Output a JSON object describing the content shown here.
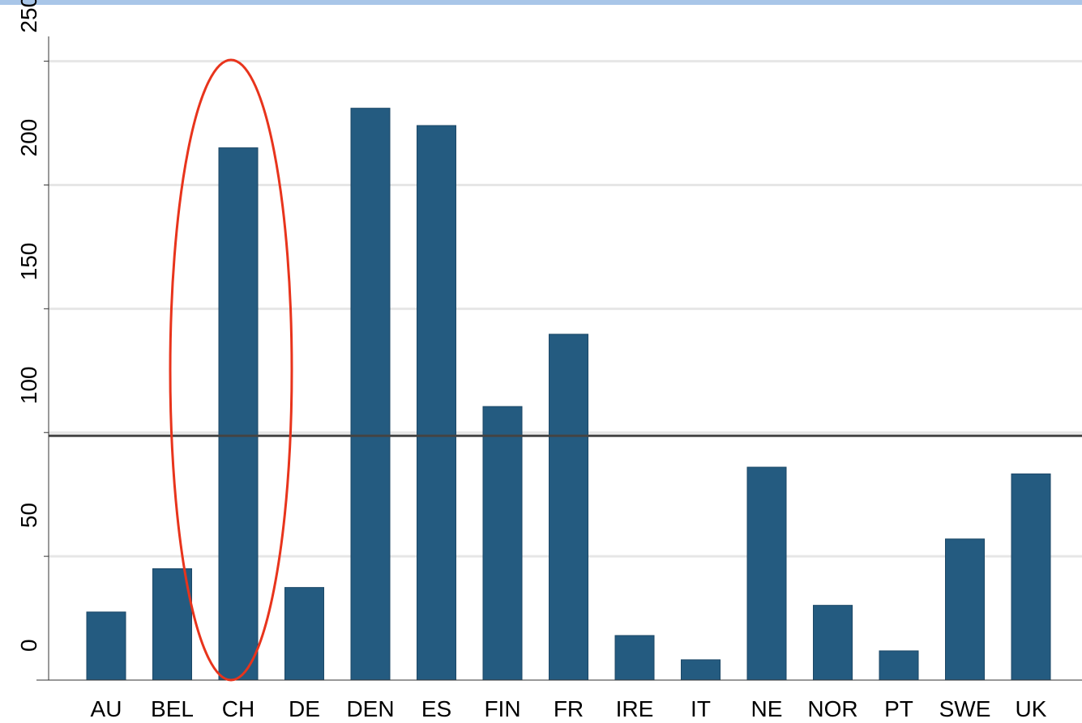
{
  "chart_data": {
    "type": "bar",
    "categories": [
      "AU",
      "BEL",
      "CH",
      "DE",
      "DEN",
      "ES",
      "FIN",
      "FR",
      "IRE",
      "IT",
      "NE",
      "NOR",
      "PT",
      "SWE",
      "UK"
    ],
    "values": [
      27.5,
      45,
      215,
      37.4,
      231,
      224,
      110.5,
      139.7,
      18,
      8.2,
      86,
      30.2,
      11.8,
      57,
      83.3
    ],
    "color": "#245b80",
    "reference_line": 98.7,
    "ylim": [
      0,
      260
    ],
    "yticks": [
      0,
      50,
      100,
      150,
      200,
      250
    ],
    "grid": true
  }
}
